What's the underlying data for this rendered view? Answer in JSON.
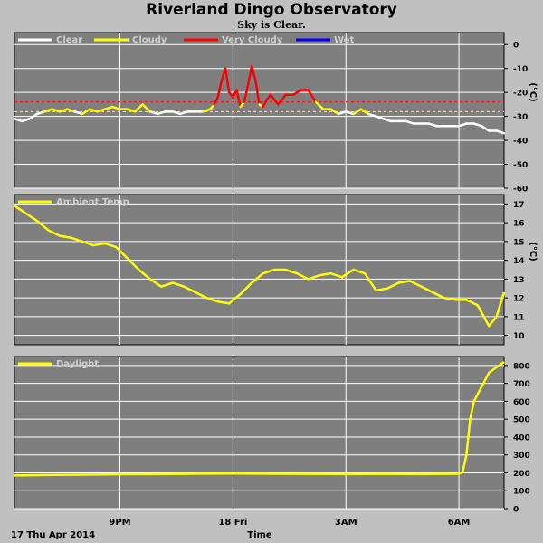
{
  "title": "Riverland Dingo Observatory",
  "subtitle": "Sky is Clear.",
  "colors": {
    "background": "#c0c0c0",
    "plot_bg": "#7f7f7f",
    "grid": "#ffffff",
    "clear": "#ffffff",
    "cloudy": "#ffff00",
    "very_cloudy": "#ff0000",
    "wet": "#0000ff",
    "threshold_cloudy": "#ffff00",
    "threshold_very_cloudy": "#ff0000"
  },
  "x_axis": {
    "label": "Time",
    "date_label": "17 Thu Apr 2014",
    "tick_labels": [
      "9PM",
      "18 Fri",
      "3AM",
      "6AM"
    ],
    "tick_hours": [
      21,
      24,
      27,
      30
    ],
    "range_hours": [
      18.2,
      31.2
    ]
  },
  "chart_data": [
    {
      "type": "line",
      "name": "sky",
      "ylabel": "(°C)",
      "ylim": [
        -60,
        5
      ],
      "yticks": [
        0,
        -10,
        -20,
        -30,
        -40,
        -50,
        -60
      ],
      "legend": [
        "Clear",
        "Cloudy",
        "Very Cloudy",
        "Wet"
      ],
      "thresholds": {
        "cloudy": -28,
        "very_cloudy": -24
      },
      "x": [
        18.2,
        18.4,
        18.6,
        18.8,
        19.0,
        19.2,
        19.4,
        19.6,
        19.8,
        20.0,
        20.2,
        20.4,
        20.6,
        20.8,
        21.0,
        21.2,
        21.4,
        21.6,
        21.8,
        22.0,
        22.2,
        22.4,
        22.6,
        22.8,
        23.0,
        23.2,
        23.4,
        23.5,
        23.6,
        23.7,
        23.8,
        23.9,
        24.0,
        24.1,
        24.2,
        24.3,
        24.4,
        24.5,
        24.6,
        24.7,
        24.8,
        24.9,
        25.0,
        25.2,
        25.4,
        25.6,
        25.8,
        26.0,
        26.2,
        26.4,
        26.6,
        26.8,
        27.0,
        27.2,
        27.4,
        27.6,
        27.8,
        28.0,
        28.2,
        28.4,
        28.6,
        28.8,
        29.0,
        29.2,
        29.4,
        29.6,
        29.8,
        30.0,
        30.2,
        30.4,
        30.6,
        30.8,
        31.0,
        31.2
      ],
      "y": [
        -31,
        -32,
        -31,
        -29,
        -28,
        -27,
        -28,
        -27,
        -28,
        -29,
        -27,
        -28,
        -27,
        -26,
        -27,
        -27,
        -28,
        -25,
        -28,
        -29,
        -28,
        -28,
        -29,
        -28,
        -28,
        -28,
        -27,
        -25,
        -22,
        -15,
        -10,
        -20,
        -22,
        -19,
        -26,
        -24,
        -17,
        -9,
        -15,
        -25,
        -26,
        -23,
        -21,
        -25,
        -21,
        -21,
        -19,
        -19,
        -24,
        -27,
        -27,
        -29,
        -28,
        -29,
        -27,
        -29,
        -30,
        -31,
        -32,
        -32,
        -32,
        -33,
        -33,
        -33,
        -34,
        -34,
        -34,
        -34,
        -33,
        -33,
        -34,
        -36,
        -36,
        -37
      ]
    },
    {
      "type": "line",
      "name": "Ambient Temp",
      "ylabel": "(°C)",
      "ylim": [
        9.5,
        17.5
      ],
      "yticks": [
        17,
        16,
        15,
        14,
        13,
        12,
        11,
        10
      ],
      "legend": [
        "Ambient Temp"
      ],
      "x": [
        18.2,
        18.5,
        18.8,
        19.1,
        19.4,
        19.7,
        20.0,
        20.3,
        20.6,
        20.9,
        21.2,
        21.5,
        21.8,
        22.1,
        22.4,
        22.7,
        23.0,
        23.3,
        23.6,
        23.9,
        24.2,
        24.5,
        24.8,
        25.1,
        25.4,
        25.7,
        26.0,
        26.3,
        26.6,
        26.9,
        27.2,
        27.5,
        27.8,
        28.1,
        28.4,
        28.7,
        29.0,
        29.3,
        29.6,
        29.9,
        30.2,
        30.5,
        30.8,
        31.0,
        31.2
      ],
      "y": [
        16.9,
        16.5,
        16.1,
        15.6,
        15.3,
        15.2,
        15.0,
        14.8,
        14.9,
        14.7,
        14.1,
        13.5,
        13.0,
        12.6,
        12.8,
        12.6,
        12.3,
        12.0,
        11.8,
        11.7,
        12.2,
        12.8,
        13.3,
        13.5,
        13.5,
        13.3,
        13.0,
        13.2,
        13.3,
        13.1,
        13.5,
        13.3,
        12.4,
        12.5,
        12.8,
        12.9,
        12.6,
        12.3,
        12.0,
        11.9,
        11.9,
        11.6,
        10.5,
        11.0,
        12.3
      ]
    },
    {
      "type": "line",
      "name": "Daylight",
      "ylabel": "",
      "ylim": [
        0,
        850
      ],
      "yticks": [
        800,
        700,
        600,
        500,
        400,
        300,
        200,
        100,
        0
      ],
      "legend": [
        "Daylight"
      ],
      "x": [
        18.2,
        19.0,
        20.0,
        21.0,
        22.0,
        23.0,
        24.0,
        25.0,
        26.0,
        27.0,
        28.0,
        29.0,
        30.0,
        30.1,
        30.2,
        30.3,
        30.4,
        30.6,
        30.8,
        31.0,
        31.2
      ],
      "y": [
        185,
        188,
        190,
        192,
        193,
        195,
        196,
        195,
        194,
        193,
        194,
        193,
        195,
        205,
        300,
        500,
        600,
        680,
        760,
        790,
        820
      ]
    }
  ]
}
